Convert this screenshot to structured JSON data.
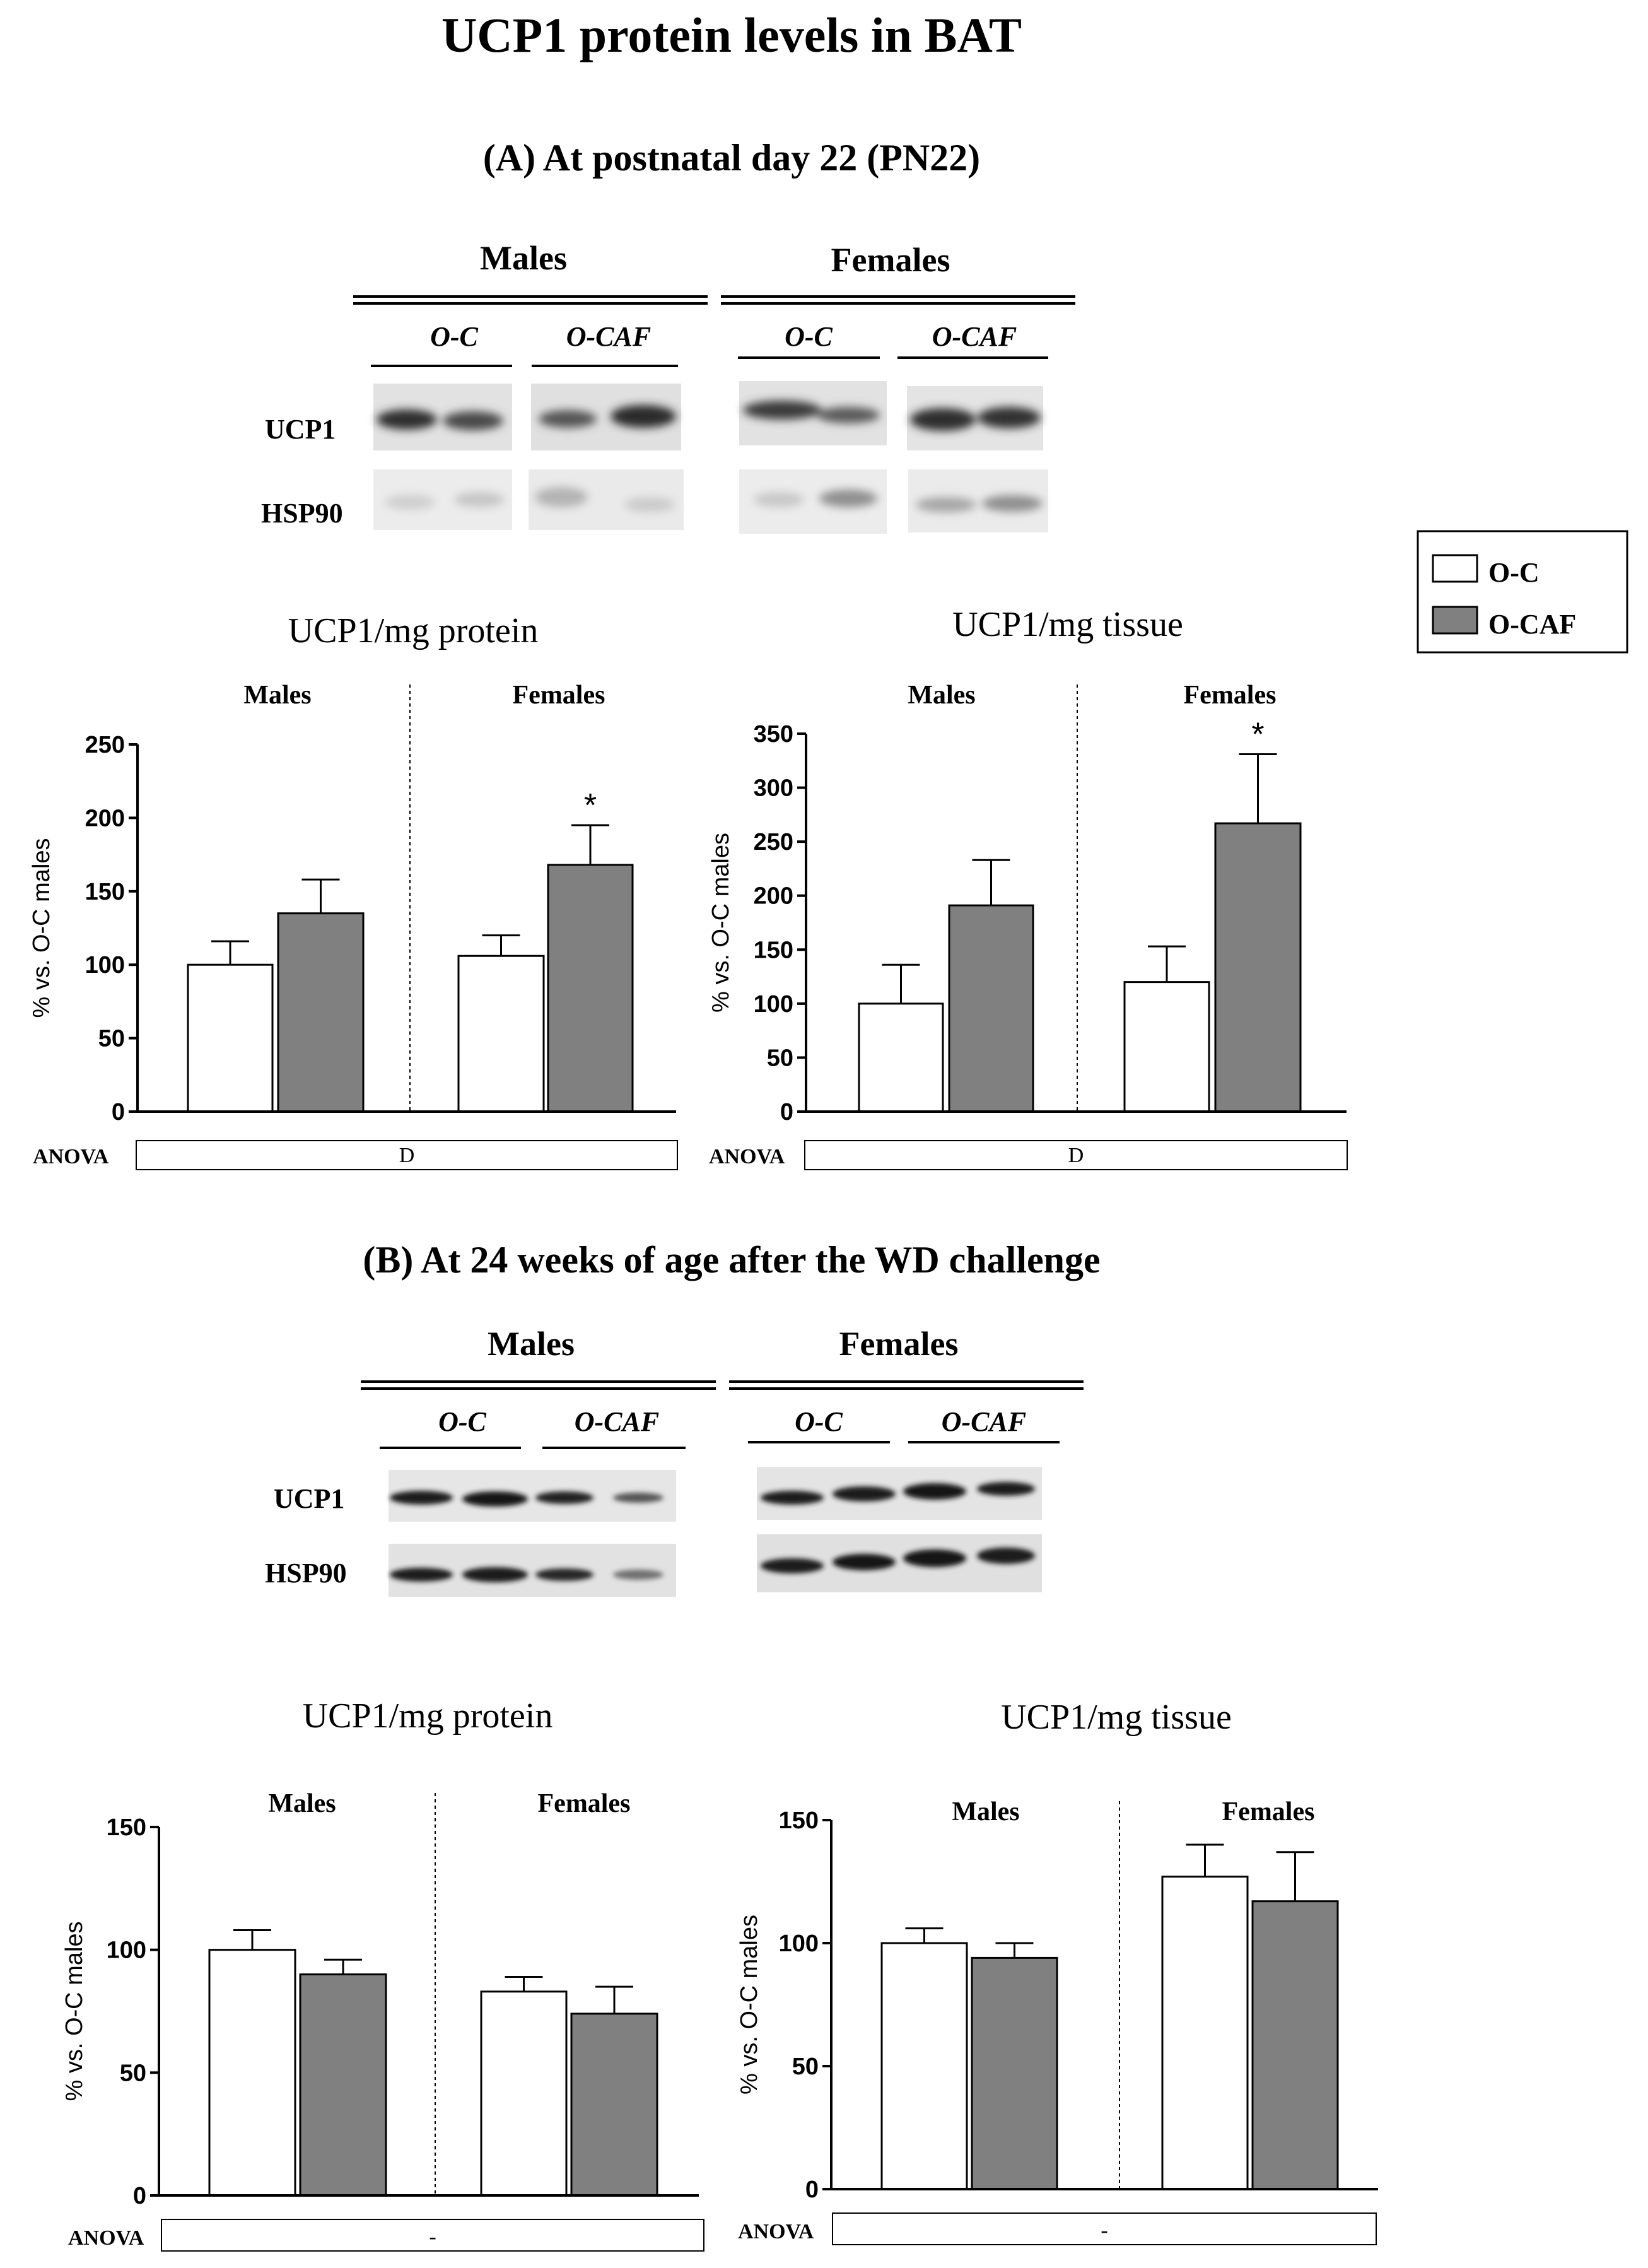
{
  "title": "UCP1 protein levels in BAT",
  "legend": {
    "items": [
      {
        "label": "O-C",
        "color": "#ffffff"
      },
      {
        "label": "O-CAF",
        "color": "#808080"
      }
    ]
  },
  "sections": {
    "a": {
      "heading": "(A) At postnatal day 22 (PN22)",
      "blot": {
        "males": "Males",
        "females": "Females",
        "g1": "O-C",
        "g2": "O-CAF",
        "g3": "O-C",
        "g4": "O-CAF",
        "row1": "UCP1",
        "row2": "HSP90"
      }
    },
    "b": {
      "heading": "(B) At 24 weeks of age after the WD challenge",
      "blot": {
        "males": "Males",
        "females": "Females",
        "g1": "O-C",
        "g2": "O-CAF",
        "g3": "O-C",
        "g4": "O-CAF",
        "row1": "UCP1",
        "row2": "HSP90"
      }
    }
  },
  "chart_data": [
    {
      "id": "a_protein",
      "type": "bar",
      "title": "UCP1/mg protein",
      "ylabel": "% vs. O-C males",
      "groups": [
        "Males",
        "Females"
      ],
      "series": [
        {
          "name": "O-C",
          "values": [
            100,
            106
          ],
          "errors": [
            16,
            14
          ]
        },
        {
          "name": "O-CAF",
          "values": [
            135,
            168
          ],
          "errors": [
            23,
            27
          ]
        }
      ],
      "ylim": [
        0,
        250
      ],
      "yticks": [
        0,
        50,
        100,
        150,
        200,
        250
      ],
      "significance": [
        "",
        "",
        "",
        "*"
      ],
      "anova_label": "ANOVA",
      "anova": "D"
    },
    {
      "id": "a_tissue",
      "type": "bar",
      "title": "UCP1/mg tissue",
      "ylabel": "% vs. O-C males",
      "groups": [
        "Males",
        "Females"
      ],
      "series": [
        {
          "name": "O-C",
          "values": [
            100,
            120
          ],
          "errors": [
            36,
            33
          ]
        },
        {
          "name": "O-CAF",
          "values": [
            191,
            267
          ],
          "errors": [
            42,
            64
          ]
        }
      ],
      "ylim": [
        0,
        350
      ],
      "yticks": [
        0,
        50,
        100,
        150,
        200,
        250,
        300,
        350
      ],
      "significance": [
        "",
        "",
        "",
        "*"
      ],
      "anova_label": "ANOVA",
      "anova": "D"
    },
    {
      "id": "b_protein",
      "type": "bar",
      "title": "UCP1/mg protein",
      "ylabel": "% vs. O-C males",
      "groups": [
        "Males",
        "Females"
      ],
      "series": [
        {
          "name": "O-C",
          "values": [
            100,
            83
          ],
          "errors": [
            8,
            6
          ]
        },
        {
          "name": "O-CAF",
          "values": [
            90,
            74
          ],
          "errors": [
            6,
            11
          ]
        }
      ],
      "ylim": [
        0,
        150
      ],
      "yticks": [
        0,
        50,
        100,
        150
      ],
      "significance": [
        "",
        "",
        "",
        ""
      ],
      "anova_label": "ANOVA",
      "anova": "-"
    },
    {
      "id": "b_tissue",
      "type": "bar",
      "title": "UCP1/mg tissue",
      "ylabel": "% vs. O-C males",
      "groups": [
        "Males",
        "Females"
      ],
      "series": [
        {
          "name": "O-C",
          "values": [
            100,
            127
          ],
          "errors": [
            6,
            13
          ]
        },
        {
          "name": "O-CAF",
          "values": [
            94,
            117
          ],
          "errors": [
            6,
            20
          ]
        }
      ],
      "ylim": [
        0,
        150
      ],
      "yticks": [
        0,
        50,
        100,
        150
      ],
      "significance": [
        "",
        "",
        "",
        ""
      ],
      "anova_label": "ANOVA",
      "anova": "-"
    }
  ]
}
